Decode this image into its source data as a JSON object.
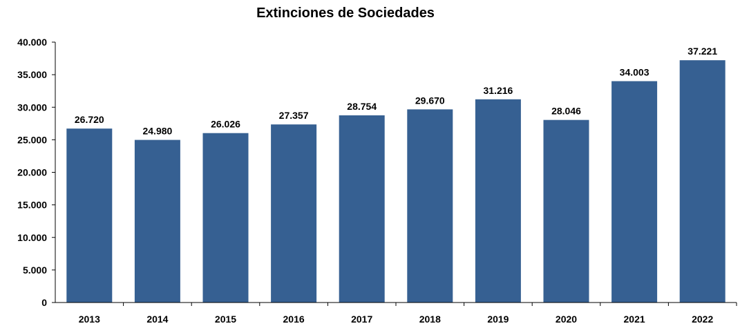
{
  "chart_data": {
    "type": "bar",
    "title": "Extinciones de Sociedades",
    "categories": [
      "2013",
      "2014",
      "2015",
      "2016",
      "2017",
      "2018",
      "2019",
      "2020",
      "2021",
      "2022"
    ],
    "values": [
      26720,
      24980,
      26026,
      27357,
      28754,
      29670,
      31216,
      28046,
      34003,
      37221
    ],
    "value_labels": [
      "26.720",
      "24.980",
      "26.026",
      "27.357",
      "28.754",
      "29.670",
      "31.216",
      "28.046",
      "34.003",
      "37.221"
    ],
    "ylim": [
      0,
      40000
    ],
    "yticks": [
      0,
      5000,
      10000,
      15000,
      20000,
      25000,
      30000,
      35000,
      40000
    ],
    "ytick_labels": [
      "0",
      "5.000",
      "10.000",
      "15.000",
      "20.000",
      "25.000",
      "30.000",
      "35.000",
      "40.000"
    ],
    "xlabel": "",
    "ylabel": "",
    "grid": false,
    "legend": false,
    "colors": {
      "bar": "#366092",
      "axis": "#000000"
    }
  }
}
